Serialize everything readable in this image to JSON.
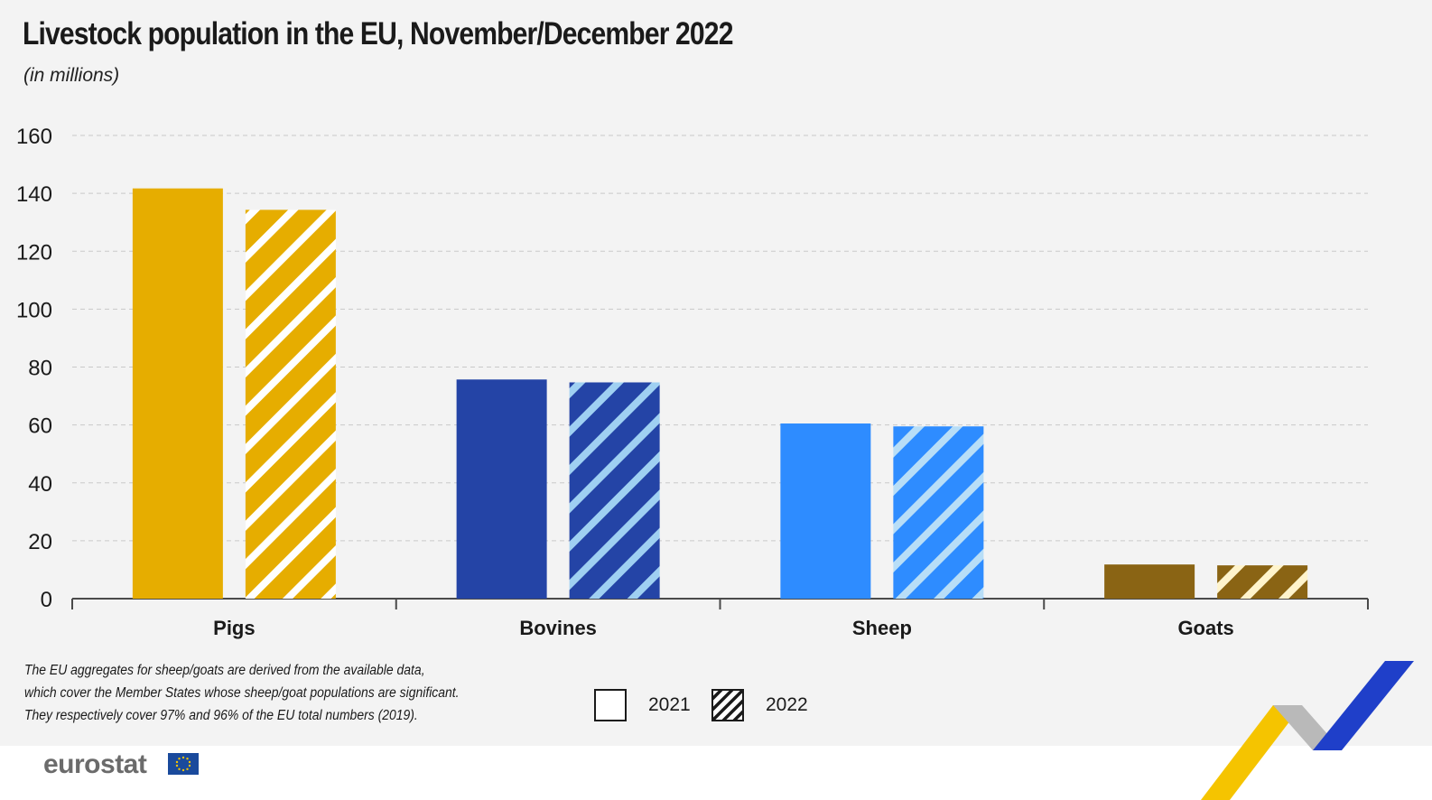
{
  "title": "Livestock population in the EU, November/December 2022",
  "subtitle": "(in millions)",
  "footnote": [
    "The EU aggregates for sheep/goats are derived from the available data,",
    "which cover the Member States whose sheep/goat populations are significant.",
    "They respectively cover 97% and 96% of the EU total numbers (2019)."
  ],
  "legend": [
    {
      "label": "2021",
      "style": "solid"
    },
    {
      "label": "2022",
      "style": "hatched"
    }
  ],
  "logo": {
    "text": "eurostat",
    "flag_color": "#1a4a9c",
    "star_color": "#f5c400"
  },
  "chart_data": {
    "type": "bar",
    "title": "Livestock population in the EU, November/December 2022",
    "ylabel": "(in millions)",
    "xlabel": "",
    "ylim": [
      0,
      160
    ],
    "yticks": [
      0,
      20,
      40,
      60,
      80,
      100,
      120,
      140,
      160
    ],
    "grid": true,
    "categories": [
      "Pigs",
      "Bovines",
      "Sheep",
      "Goats"
    ],
    "colors": [
      "#e6ad00",
      "#2444a6",
      "#2e8cff",
      "#8a6414"
    ],
    "hatch_colors": [
      "#ffffff",
      "#9fd0f2",
      "#b8def7",
      "#fff4cc"
    ],
    "series": [
      {
        "name": "2021",
        "style": "solid",
        "values": [
          141.7,
          75.7,
          60.5,
          11.8
        ]
      },
      {
        "name": "2022",
        "style": "hatched",
        "values": [
          134.3,
          74.7,
          59.5,
          11.5
        ]
      }
    ]
  }
}
